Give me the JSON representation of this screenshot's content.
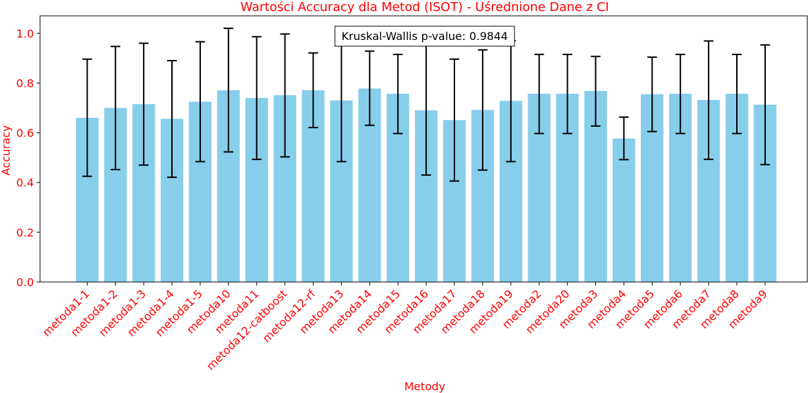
{
  "chart_data": {
    "type": "bar",
    "title": "Wartości Accuracy dla Metod (ISOT) - Uśrednione Dane z CI",
    "xlabel": "Metody",
    "ylabel": "Accuracy",
    "ylim": [
      0,
      1.07
    ],
    "yticks": [
      "0.0",
      "0.2",
      "0.4",
      "0.6",
      "0.8",
      "1.0"
    ],
    "grid": false,
    "bar_color": "#87ceeb",
    "error_color": "#000000",
    "text_color": "#ff0000",
    "annotation": "Kruskal-Wallis p-value: 0.9844",
    "categories": [
      "metoda1-1",
      "metoda1-2",
      "metoda1-3",
      "metoda1-4",
      "metoda1-5",
      "metoda10",
      "metoda11",
      "metoda12-catboost",
      "metoda12-rf",
      "metoda13",
      "metoda14",
      "metoda15",
      "metoda16",
      "metoda17",
      "metoda18",
      "metoda19",
      "metoda2",
      "metoda20",
      "metoda3",
      "metoda4",
      "metoda5",
      "metoda6",
      "metoda7",
      "metoda8",
      "metoda9"
    ],
    "values": [
      0.66,
      0.7,
      0.715,
      0.656,
      0.725,
      0.771,
      0.74,
      0.751,
      0.771,
      0.73,
      0.778,
      0.757,
      0.69,
      0.651,
      0.692,
      0.728,
      0.757,
      0.757,
      0.768,
      0.577,
      0.755,
      0.757,
      0.732,
      0.757,
      0.713
    ],
    "ci_low": [
      0.425,
      0.452,
      0.47,
      0.421,
      0.484,
      0.523,
      0.493,
      0.503,
      0.621,
      0.484,
      0.63,
      0.597,
      0.43,
      0.406,
      0.45,
      0.484,
      0.597,
      0.597,
      0.627,
      0.492,
      0.605,
      0.597,
      0.493,
      0.597,
      0.472
    ],
    "ci_high": [
      0.896,
      0.947,
      0.96,
      0.89,
      0.966,
      1.02,
      0.986,
      0.997,
      0.921,
      0.98,
      0.928,
      0.915,
      0.952,
      0.896,
      0.933,
      0.97,
      0.915,
      0.915,
      0.907,
      0.663,
      0.904,
      0.915,
      0.969,
      0.915,
      0.953
    ]
  }
}
